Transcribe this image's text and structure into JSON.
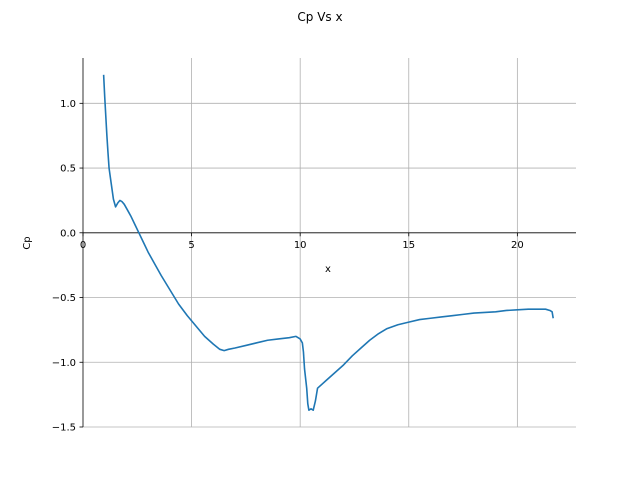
{
  "chart_data": {
    "type": "line",
    "title": "Cp Vs x",
    "xlabel": "x",
    "ylabel": "Cp",
    "xlim": [
      0,
      22.7
    ],
    "ylim": [
      -1.5,
      1.35
    ],
    "xticks": [
      0,
      5,
      10,
      15,
      20
    ],
    "yticks": [
      -1.5,
      -1.0,
      -0.5,
      0.0,
      0.5,
      1.0
    ],
    "ytick_labels": [
      "−1.5",
      "−1.0",
      "−0.5",
      "0.0",
      "0.5",
      "1.0"
    ],
    "xtick_labels": [
      "0",
      "5",
      "10",
      "15",
      "20"
    ],
    "grid": true,
    "series_color": "#1f77b4",
    "series": [
      {
        "x": [
          0.95,
          1.0,
          1.05,
          1.1,
          1.15,
          1.2,
          1.3,
          1.4,
          1.5,
          1.6,
          1.7,
          1.8,
          1.9,
          2.0,
          2.1,
          2.2,
          2.4,
          2.6,
          2.8,
          3.0,
          3.3,
          3.6,
          4.0,
          4.4,
          4.8,
          5.2,
          5.6,
          6.0,
          6.3,
          6.5,
          6.7,
          7.0,
          7.5,
          8.0,
          8.5,
          9.0,
          9.5,
          9.8,
          10.0,
          10.1,
          10.15,
          10.2,
          10.3,
          10.35,
          10.4,
          10.5,
          10.6,
          10.7,
          10.8,
          11.2,
          11.6,
          12.0,
          12.4,
          12.8,
          13.2,
          13.6,
          14.0,
          14.5,
          15.0,
          15.5,
          16.0,
          16.5,
          17.0,
          17.5,
          18.0,
          18.5,
          19.0,
          19.5,
          20.0,
          20.5,
          21.0,
          21.3,
          21.5,
          21.6,
          21.65
        ],
        "y": [
          1.22,
          1.05,
          0.9,
          0.75,
          0.62,
          0.5,
          0.38,
          0.26,
          0.2,
          0.23,
          0.25,
          0.24,
          0.22,
          0.19,
          0.16,
          0.13,
          0.06,
          -0.01,
          -0.08,
          -0.15,
          -0.24,
          -0.33,
          -0.44,
          -0.55,
          -0.64,
          -0.72,
          -0.8,
          -0.86,
          -0.9,
          -0.91,
          -0.9,
          -0.89,
          -0.87,
          -0.85,
          -0.83,
          -0.82,
          -0.81,
          -0.8,
          -0.82,
          -0.85,
          -0.92,
          -1.05,
          -1.2,
          -1.32,
          -1.37,
          -1.36,
          -1.37,
          -1.3,
          -1.2,
          -1.14,
          -1.08,
          -1.02,
          -0.95,
          -0.89,
          -0.83,
          -0.78,
          -0.74,
          -0.71,
          -0.69,
          -0.67,
          -0.66,
          -0.65,
          -0.64,
          -0.63,
          -0.62,
          -0.615,
          -0.61,
          -0.6,
          -0.595,
          -0.59,
          -0.59,
          -0.59,
          -0.6,
          -0.61,
          -0.66
        ]
      }
    ]
  }
}
